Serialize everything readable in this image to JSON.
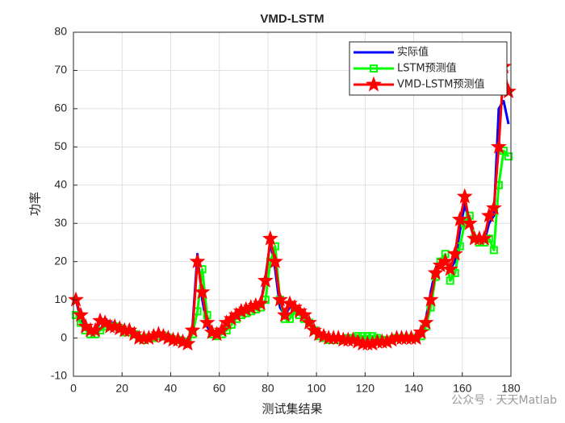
{
  "chart_data": {
    "type": "line",
    "title": "VMD-LSTM",
    "x_label": "测试集结果",
    "y_label": "功率",
    "watermark": "公众号 · 天天Matlab",
    "x": [
      1,
      3,
      5,
      7,
      9,
      11,
      13,
      15,
      17,
      19,
      21,
      23,
      25,
      27,
      29,
      31,
      33,
      35,
      37,
      39,
      41,
      43,
      45,
      47,
      49,
      51,
      53,
      55,
      57,
      59,
      61,
      63,
      65,
      67,
      69,
      71,
      73,
      75,
      77,
      79,
      81,
      83,
      85,
      87,
      89,
      91,
      93,
      95,
      97,
      99,
      101,
      103,
      105,
      107,
      109,
      111,
      113,
      115,
      117,
      119,
      121,
      123,
      125,
      127,
      129,
      131,
      133,
      135,
      137,
      139,
      141,
      143,
      145,
      147,
      149,
      151,
      153,
      155,
      157,
      159,
      161,
      163,
      165,
      167,
      169,
      171,
      173,
      175,
      177,
      179
    ],
    "series": [
      {
        "name": "实际值",
        "color": "#0000ff",
        "marker": "none",
        "values": [
          10,
          5,
          3,
          2,
          2,
          4,
          5,
          4,
          4,
          3,
          2,
          2,
          1,
          0,
          0,
          0,
          0.5,
          1,
          0.5,
          0,
          -0.5,
          -0.5,
          -1,
          -1,
          3,
          22,
          10,
          3,
          1,
          1,
          2,
          4,
          5,
          6,
          7,
          7,
          8,
          8,
          9,
          16,
          25,
          18,
          8,
          6,
          8,
          8,
          7,
          6,
          4,
          2,
          1,
          0.5,
          0,
          0,
          0,
          0,
          0,
          -0.5,
          -1,
          -1,
          -1,
          -1,
          -1,
          -1,
          -0.5,
          -0.5,
          0,
          0,
          0,
          0,
          0,
          2,
          5,
          12,
          18,
          20,
          20,
          18,
          20,
          28,
          35,
          30,
          26,
          25,
          25,
          30,
          32,
          60,
          62,
          56
        ]
      },
      {
        "name": "LSTM预测值",
        "color": "#00ff00",
        "marker": "square",
        "values": [
          6,
          4,
          2,
          1,
          1,
          2,
          3,
          3,
          3,
          2.5,
          1.5,
          1.5,
          1,
          0,
          -0.5,
          0,
          0,
          0.5,
          0.5,
          0,
          -0.5,
          -0.5,
          -1,
          -1,
          1,
          7,
          18,
          6,
          1,
          0.5,
          1,
          2,
          3.5,
          5,
          6,
          6.5,
          7,
          7.5,
          8,
          10,
          20,
          24,
          10,
          5,
          5,
          7,
          6,
          5,
          4,
          2,
          0.5,
          0,
          -0.5,
          -0.5,
          -0.5,
          -0.5,
          0,
          0,
          0.5,
          0.5,
          0.5,
          0.5,
          0,
          -0.5,
          -0.5,
          -0.5,
          0,
          0,
          0,
          0,
          0,
          0.5,
          3,
          8,
          16,
          20,
          22,
          15,
          17,
          24,
          30,
          32,
          26,
          25,
          25,
          26,
          23,
          40,
          49,
          47.5
        ]
      },
      {
        "name": "VMD-LSTM预测值",
        "color": "#ff0000",
        "marker": "star",
        "values": [
          10,
          6,
          3,
          2,
          2,
          4.5,
          4,
          3,
          3,
          2.5,
          2,
          2,
          1,
          0,
          0,
          0,
          0.5,
          1,
          0.5,
          0,
          -0.5,
          -0.5,
          -1,
          -1.5,
          2,
          20,
          12,
          4,
          1.5,
          1,
          2,
          4,
          5,
          6,
          7,
          7.5,
          8,
          8.5,
          9,
          15,
          26,
          20,
          10,
          6,
          9,
          8,
          7,
          6,
          4,
          2,
          1,
          0.5,
          0,
          0,
          0,
          -0.5,
          -0.5,
          -0.5,
          -1,
          -1.5,
          -1.5,
          -1.5,
          -1,
          -1,
          -1,
          -0.5,
          0,
          0,
          0,
          0,
          0,
          1.5,
          4,
          10,
          17,
          19,
          20,
          18,
          22,
          31,
          37,
          30,
          26,
          26,
          26,
          32,
          34,
          50,
          71,
          64.5
        ]
      }
    ],
    "xlim": [
      0,
      180
    ],
    "xticks": [
      0,
      20,
      40,
      60,
      80,
      100,
      120,
      140,
      160,
      180
    ],
    "ylim": [
      -10,
      80
    ],
    "yticks": [
      -10,
      0,
      10,
      20,
      30,
      40,
      50,
      60,
      70,
      80
    ],
    "grid": true,
    "legend": "upper right"
  }
}
